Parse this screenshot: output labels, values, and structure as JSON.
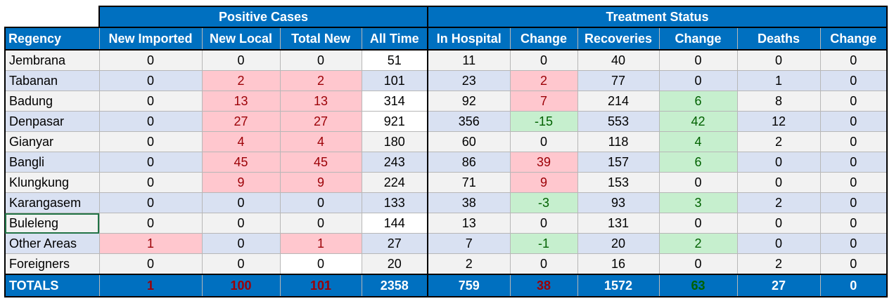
{
  "groups": {
    "positive": "Positive Cases",
    "treatment": "Treatment Status"
  },
  "columns": [
    "Regency",
    "New Imported",
    "New Local",
    "Total New",
    "All Time",
    "In Hospital",
    "Change",
    "Recoveries",
    "Change",
    "Deaths",
    "Change"
  ],
  "rows": [
    {
      "name": "Jembrana",
      "values": [
        "0",
        "0",
        "0",
        "51",
        "11",
        "0",
        "40",
        "0",
        "0",
        "0"
      ]
    },
    {
      "name": "Tabanan",
      "values": [
        "0",
        "2",
        "2",
        "101",
        "23",
        "2",
        "77",
        "0",
        "1",
        "0"
      ]
    },
    {
      "name": "Badung",
      "values": [
        "0",
        "13",
        "13",
        "314",
        "92",
        "7",
        "214",
        "6",
        "8",
        "0"
      ]
    },
    {
      "name": "Denpasar",
      "values": [
        "0",
        "27",
        "27",
        "921",
        "356",
        "-15",
        "553",
        "42",
        "12",
        "0"
      ]
    },
    {
      "name": "Gianyar",
      "values": [
        "0",
        "4",
        "4",
        "180",
        "60",
        "0",
        "118",
        "4",
        "2",
        "0"
      ]
    },
    {
      "name": "Bangli",
      "values": [
        "0",
        "45",
        "45",
        "243",
        "86",
        "39",
        "157",
        "6",
        "0",
        "0"
      ]
    },
    {
      "name": "Klungkung",
      "values": [
        "0",
        "9",
        "9",
        "224",
        "71",
        "9",
        "153",
        "0",
        "0",
        "0"
      ]
    },
    {
      "name": "Karangasem",
      "values": [
        "0",
        "0",
        "0",
        "133",
        "38",
        "-3",
        "93",
        "3",
        "2",
        "0"
      ]
    },
    {
      "name": "Buleleng",
      "values": [
        "0",
        "0",
        "0",
        "144",
        "13",
        "0",
        "131",
        "0",
        "0",
        "0"
      ]
    },
    {
      "name": "Other Areas",
      "values": [
        "1",
        "0",
        "1",
        "27",
        "7",
        "-1",
        "20",
        "2",
        "0",
        "0"
      ]
    },
    {
      "name": "Foreigners",
      "values": [
        "0",
        "0",
        "0",
        "20",
        "2",
        "0",
        "16",
        "0",
        "2",
        "0"
      ]
    }
  ],
  "totals": {
    "name": "TOTALS",
    "values": [
      "1",
      "100",
      "101",
      "2358",
      "759",
      "38",
      "1572",
      "63",
      "27",
      "0"
    ]
  },
  "colors": {
    "header_blue": "#0070c0",
    "increase_fill": "#ffc7ce",
    "increase_text": "#9c0006",
    "decrease_fill": "#c6efce",
    "decrease_text": "#006100",
    "row_band_a": "#f2f2f2",
    "row_band_b": "#d9e1f2"
  }
}
